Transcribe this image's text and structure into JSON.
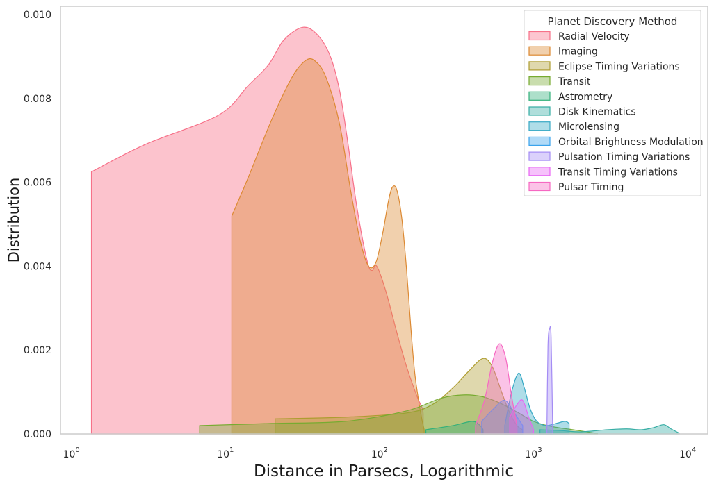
{
  "chart_data": {
    "type": "area",
    "title": "",
    "xlabel": "Distance in Parsecs, Logarithmic",
    "ylabel": "Distribution",
    "x_scale": "log",
    "xlim": [
      0.85,
      13500
    ],
    "ylim": [
      0,
      0.0102
    ],
    "x_ticks": [
      {
        "value": 1,
        "base": "10",
        "exp": "0"
      },
      {
        "value": 10,
        "base": "10",
        "exp": "1"
      },
      {
        "value": 100,
        "base": "10",
        "exp": "2"
      },
      {
        "value": 1000,
        "base": "10",
        "exp": "3"
      },
      {
        "value": 10000,
        "base": "10",
        "exp": "4"
      }
    ],
    "y_ticks": [
      {
        "value": 0.0,
        "label": "0.000"
      },
      {
        "value": 0.002,
        "label": "0.002"
      },
      {
        "value": 0.004,
        "label": "0.004"
      },
      {
        "value": 0.006,
        "label": "0.006"
      },
      {
        "value": 0.008,
        "label": "0.008"
      },
      {
        "value": 0.01,
        "label": "0.010"
      }
    ],
    "grid": false,
    "legend": {
      "title": "Planet Discovery Method",
      "position": "top-right"
    },
    "series": [
      {
        "name": "Radial Velocity",
        "color": "#f77189",
        "points": [
          [
            1.35,
            0.00625
          ],
          [
            3.0,
            0.0069
          ],
          [
            9.0,
            0.0076
          ],
          [
            14,
            0.0083
          ],
          [
            19,
            0.0088
          ],
          [
            24,
            0.0094
          ],
          [
            32,
            0.0097
          ],
          [
            40,
            0.0095
          ],
          [
            48,
            0.009
          ],
          [
            55,
            0.0082
          ],
          [
            62,
            0.007
          ],
          [
            70,
            0.0056
          ],
          [
            78,
            0.0046
          ],
          [
            85,
            0.004
          ],
          [
            90,
            0.0039
          ],
          [
            96,
            0.004
          ],
          [
            110,
            0.0034
          ],
          [
            130,
            0.0024
          ],
          [
            150,
            0.0016
          ],
          [
            175,
            0.0009
          ],
          [
            190,
            0.0006
          ],
          [
            192,
            0.0004
          ]
        ]
      },
      {
        "name": "Imaging",
        "color": "#dc8932",
        "points": [
          [
            11,
            0.0052
          ],
          [
            14,
            0.0061
          ],
          [
            20,
            0.0075
          ],
          [
            27,
            0.0085
          ],
          [
            33,
            0.0089
          ],
          [
            38,
            0.0089
          ],
          [
            45,
            0.0085
          ],
          [
            55,
            0.0074
          ],
          [
            65,
            0.0058
          ],
          [
            75,
            0.0046
          ],
          [
            85,
            0.004
          ],
          [
            95,
            0.0041
          ],
          [
            105,
            0.0048
          ],
          [
            115,
            0.0056
          ],
          [
            122,
            0.0059
          ],
          [
            130,
            0.0058
          ],
          [
            140,
            0.0051
          ],
          [
            150,
            0.0039
          ],
          [
            160,
            0.0025
          ],
          [
            170,
            0.0014
          ],
          [
            185,
            0.0005
          ],
          [
            195,
            0.0001
          ]
        ]
      },
      {
        "name": "Eclipse Timing Variations",
        "color": "#ae9d31",
        "points": [
          [
            21,
            0.00036
          ],
          [
            60,
            0.0004
          ],
          [
            150,
            0.0005
          ],
          [
            220,
            0.0007
          ],
          [
            300,
            0.0011
          ],
          [
            380,
            0.0015
          ],
          [
            470,
            0.0018
          ],
          [
            540,
            0.0016
          ],
          [
            620,
            0.001
          ],
          [
            700,
            0.0005
          ],
          [
            780,
            0.0002
          ],
          [
            850,
            0.0001
          ]
        ]
      },
      {
        "name": "Transit",
        "color": "#77ab31",
        "points": [
          [
            6.8,
            0.0002
          ],
          [
            20,
            0.00025
          ],
          [
            60,
            0.0003
          ],
          [
            150,
            0.00055
          ],
          [
            250,
            0.00085
          ],
          [
            350,
            0.00093
          ],
          [
            450,
            0.0009
          ],
          [
            550,
            0.0008
          ],
          [
            650,
            0.00068
          ],
          [
            800,
            0.0005
          ],
          [
            1000,
            0.0003
          ],
          [
            1300,
            0.00018
          ],
          [
            1800,
            0.0001
          ],
          [
            2300,
            4e-05
          ],
          [
            2600,
            1e-05
          ]
        ]
      },
      {
        "name": "Astrometry",
        "color": "#33b07a",
        "points": [
          [
            200,
            0.0001
          ],
          [
            300,
            0.0002
          ],
          [
            400,
            0.0003
          ],
          [
            450,
            0.0002
          ],
          [
            470,
            0.0001
          ]
        ]
      },
      {
        "name": "Disk Kinematics",
        "color": "#36ada4",
        "points": [
          [
            1100,
            0.0001
          ],
          [
            1500,
            8e-05
          ],
          [
            2000,
            5e-05
          ],
          [
            3000,
            0.0001
          ],
          [
            4000,
            0.00012
          ],
          [
            5000,
            0.0001
          ],
          [
            6000,
            0.00015
          ],
          [
            7000,
            0.00022
          ],
          [
            7800,
            0.00012
          ],
          [
            8800,
            2e-05
          ]
        ]
      },
      {
        "name": "Microlensing",
        "color": "#38a9c5",
        "points": [
          [
            650,
            0.0002
          ],
          [
            720,
            0.001
          ],
          [
            800,
            0.00145
          ],
          [
            870,
            0.0011
          ],
          [
            950,
            0.0006
          ],
          [
            1050,
            0.0003
          ],
          [
            1200,
            0.0002
          ],
          [
            1400,
            0.00025
          ],
          [
            1600,
            0.0003
          ],
          [
            1700,
            0.00025
          ]
        ]
      },
      {
        "name": "Orbital Brightness Modulation",
        "color": "#3ba3ec",
        "points": [
          [
            460,
            0.0003
          ],
          [
            550,
            0.0006
          ],
          [
            650,
            0.0008
          ],
          [
            750,
            0.0005
          ],
          [
            850,
            0.0002
          ]
        ]
      },
      {
        "name": "Pulsation Timing Variations",
        "color": "#a48cf4",
        "points": [
          [
            1220,
            0.0001
          ],
          [
            1240,
            0.0021
          ],
          [
            1270,
            0.0025
          ],
          [
            1300,
            0.0023
          ],
          [
            1330,
            0.0001
          ]
        ]
      },
      {
        "name": "Transit Timing Variations",
        "color": "#e866f4",
        "points": [
          [
            700,
            0.0004
          ],
          [
            780,
            0.0007
          ],
          [
            850,
            0.0008
          ],
          [
            930,
            0.0004
          ],
          [
            1000,
            0.0001
          ]
        ]
      },
      {
        "name": "Pulsar Timing",
        "color": "#f668c2",
        "points": [
          [
            420,
            0.0002
          ],
          [
            480,
            0.0008
          ],
          [
            540,
            0.0017
          ],
          [
            600,
            0.00215
          ],
          [
            660,
            0.0018
          ],
          [
            720,
            0.0009
          ],
          [
            780,
            0.0002
          ]
        ]
      }
    ]
  }
}
